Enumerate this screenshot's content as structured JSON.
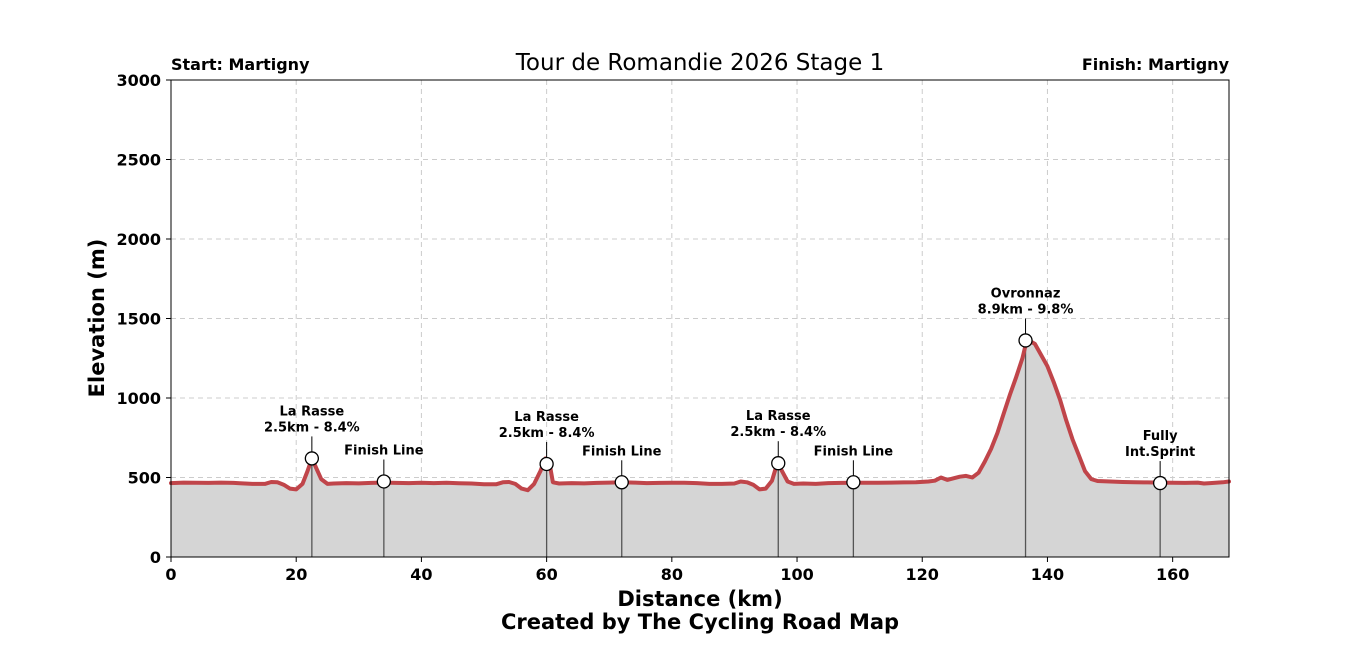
{
  "chart_data": {
    "type": "area",
    "title": "Tour de Romandie 2026 Stage 1",
    "start_label": "Start: Martigny",
    "finish_label": "Finish: Martigny",
    "xlabel": "Distance (km)",
    "ylabel": "Elevation (m)",
    "credit": "Created by The Cycling Road Map",
    "xlim": [
      0,
      169
    ],
    "ylim": [
      0,
      3000
    ],
    "xticks": [
      0,
      20,
      40,
      60,
      80,
      100,
      120,
      140,
      160
    ],
    "yticks": [
      0,
      500,
      1000,
      1500,
      2000,
      2500,
      3000
    ],
    "grid": true,
    "colors": {
      "line": "#c0454a",
      "fill": "#d5d5d5",
      "grid": "#cccccc",
      "marker_line": "#555555"
    },
    "profile": {
      "x": [
        0,
        2,
        4,
        6,
        8,
        10,
        11,
        13,
        15,
        16,
        17,
        18,
        19,
        20,
        21,
        21.8,
        22.5,
        23.2,
        24,
        25,
        26,
        28,
        30,
        32,
        34,
        36,
        38,
        40,
        42,
        44,
        46,
        48,
        50,
        52,
        53,
        54,
        55,
        56,
        57,
        58,
        59,
        59.8,
        60.5,
        61,
        62,
        64,
        66,
        68,
        70,
        72,
        74,
        76,
        78,
        80,
        82,
        84,
        86,
        88,
        90,
        91,
        92,
        93,
        94,
        95,
        96,
        96.6,
        97,
        97.6,
        98.5,
        99.5,
        101,
        103,
        105,
        107,
        109,
        111,
        113,
        115,
        117,
        119,
        121,
        122,
        123,
        124,
        125,
        126,
        127,
        128,
        129,
        130,
        131,
        132,
        133,
        134,
        135,
        136,
        136.5,
        137,
        138,
        139,
        140,
        141,
        142,
        143,
        144,
        145,
        146,
        147,
        148,
        150,
        152,
        154,
        156,
        158,
        160,
        162,
        164,
        165,
        166,
        168,
        169
      ],
      "y": [
        465,
        468,
        467,
        466,
        468,
        466,
        464,
        460,
        460,
        472,
        470,
        455,
        430,
        425,
        460,
        540,
        620,
        560,
        490,
        460,
        462,
        465,
        463,
        466,
        468,
        466,
        465,
        467,
        465,
        467,
        464,
        462,
        458,
        458,
        470,
        472,
        460,
        430,
        420,
        460,
        540,
        620,
        580,
        470,
        462,
        465,
        463,
        466,
        468,
        470,
        468,
        465,
        466,
        467,
        467,
        465,
        460,
        460,
        462,
        475,
        470,
        455,
        425,
        430,
        480,
        560,
        590,
        540,
        475,
        460,
        462,
        460,
        465,
        466,
        467,
        467,
        467,
        468,
        469,
        470,
        475,
        480,
        500,
        485,
        495,
        505,
        510,
        500,
        530,
        600,
        680,
        780,
        900,
        1020,
        1130,
        1250,
        1330,
        1362,
        1340,
        1270,
        1200,
        1100,
        990,
        860,
        740,
        640,
        540,
        490,
        478,
        475,
        472,
        470,
        469,
        468,
        467,
        466,
        468,
        462,
        465,
        470,
        475
      ]
    },
    "markers": [
      {
        "x": 22.5,
        "y": 620,
        "label_lines": [
          "La Rasse",
          "2.5km - 8.4%"
        ]
      },
      {
        "x": 34,
        "y": 475,
        "label_lines": [
          "Finish Line"
        ]
      },
      {
        "x": 60,
        "y": 585,
        "label_lines": [
          "La Rasse",
          "2.5km - 8.4%"
        ]
      },
      {
        "x": 72,
        "y": 470,
        "label_lines": [
          "Finish Line"
        ]
      },
      {
        "x": 97,
        "y": 590,
        "label_lines": [
          "La Rasse",
          "2.5km - 8.4%"
        ]
      },
      {
        "x": 109,
        "y": 470,
        "label_lines": [
          "Finish Line"
        ]
      },
      {
        "x": 136.5,
        "y": 1362,
        "label_lines": [
          "Ovronnaz",
          "8.9km - 9.8%"
        ]
      },
      {
        "x": 158,
        "y": 465,
        "label_lines": [
          "Fully",
          "Int.Sprint"
        ]
      }
    ]
  }
}
